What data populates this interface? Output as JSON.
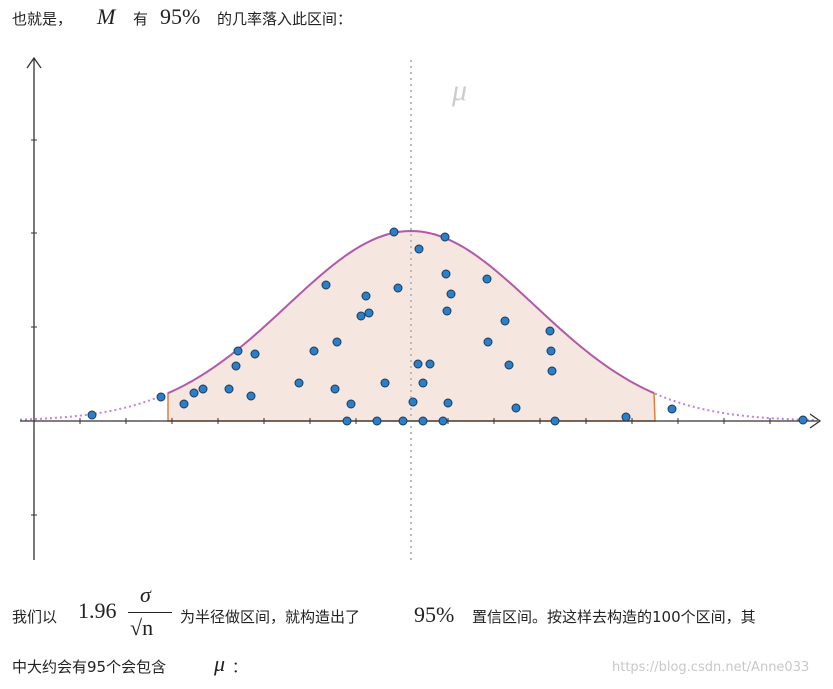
{
  "paragraph1": {
    "intro": "也就是，",
    "var": "M",
    "word": "有",
    "percent": "95%",
    "rest": "的几率落入此区间："
  },
  "figure": {
    "mu_label": "μ"
  },
  "paragraph2": {
    "intro": "我们以",
    "coef": "1.96",
    "numerator": "σ",
    "denominator": "√n",
    "mid": "为半径做区间，就构造出了",
    "percent": "95%",
    "rest_line1": "置信区间。按这样去构造的100个区间，其",
    "rest_line2": "中大约会有95个会包含",
    "mu": "μ",
    "colon": "："
  },
  "watermark": "https://blog.csdn.net/Anne033"
}
